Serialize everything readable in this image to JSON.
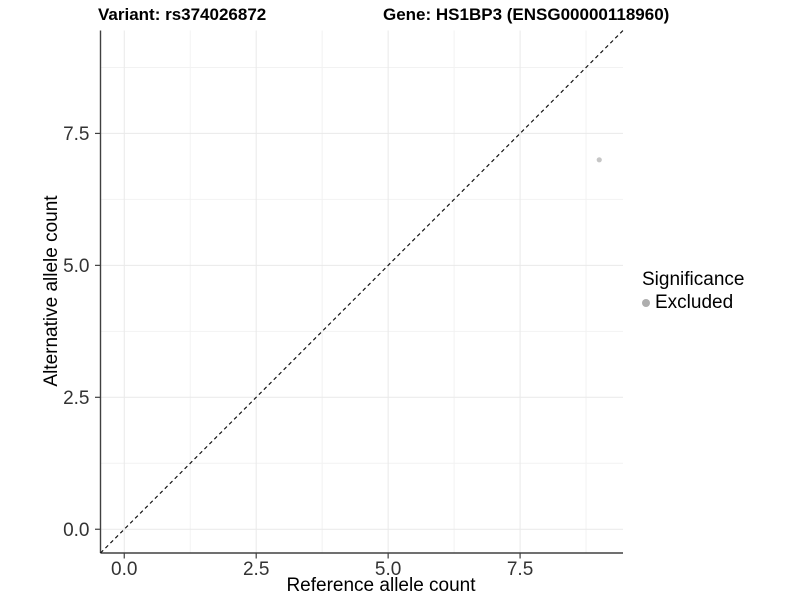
{
  "figure": {
    "title_left": "Variant: rs374026872",
    "title_right": "Gene: HS1BP3 (ENSG00000118960)"
  },
  "axes": {
    "x_title": "Reference allele count",
    "y_title": "Alternative allele count"
  },
  "legend": {
    "title": "Significance",
    "items": [
      {
        "label": "Excluded",
        "marker_color": "#aeaeae"
      }
    ]
  },
  "chart_data": {
    "type": "scatter",
    "title": "Variant: rs374026872 — Gene: HS1BP3 (ENSG00000118960)",
    "xlabel": "Reference allele count",
    "ylabel": "Alternative allele count",
    "xlim": [
      -0.45,
      9.45
    ],
    "ylim": [
      -0.45,
      9.45
    ],
    "x_major_ticks": [
      0,
      2.5,
      5,
      7.5
    ],
    "y_major_ticks": [
      0,
      2.5,
      5,
      7.5
    ],
    "x_tick_labels": [
      "0.0",
      "2.5",
      "5.0",
      "7.5"
    ],
    "y_tick_labels": [
      "0.0",
      "2.5",
      "5.0",
      "7.5"
    ],
    "x_minor_ticks": [
      1.25,
      3.75,
      6.25,
      8.75
    ],
    "y_minor_ticks": [
      1.25,
      3.75,
      6.25,
      8.75
    ],
    "grid": "major-and-minor",
    "legend_position": "right",
    "series": [
      {
        "name": "Excluded",
        "color": "#c6c6c6",
        "marker_radius": 2.6,
        "points": [
          {
            "x": 9,
            "y": 7
          }
        ]
      }
    ],
    "reference_line": {
      "kind": "identity",
      "from": [
        -0.45,
        -0.45
      ],
      "to": [
        9.45,
        9.45
      ],
      "style": "dashed",
      "color": "#141414"
    }
  },
  "style": {
    "background": "#ffffff",
    "axis_line_color": "#404040",
    "tick_color": "#404040",
    "tick_label_color": "#333333",
    "major_grid_color": "#e9e9e9",
    "minor_grid_color": "#f2f2f2"
  }
}
